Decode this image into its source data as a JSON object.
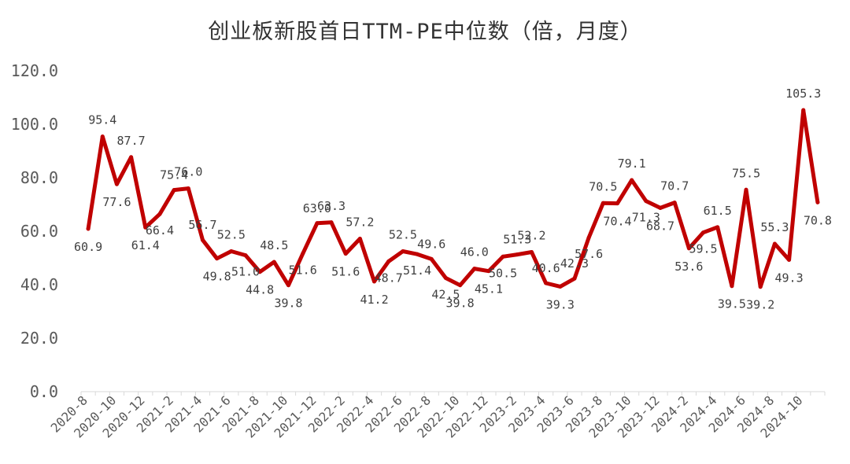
{
  "chart_data": {
    "type": "line",
    "title": "创业板新股首日TTM-PE中位数（倍，月度）",
    "xlabel": "",
    "ylabel": "",
    "ylim": [
      0,
      120
    ],
    "yticks": [
      "0.0",
      "20.0",
      "40.0",
      "60.0",
      "80.0",
      "100.0",
      "120.0"
    ],
    "grid": false,
    "legend": "none",
    "line_color": "#C00000",
    "categories": [
      "2020-8",
      "2020-9",
      "2020-10",
      "2020-11",
      "2020-12",
      "2021-1",
      "2021-2",
      "2021-3",
      "2021-4",
      "2021-5",
      "2021-6",
      "2021-7",
      "2021-8",
      "2021-9",
      "2021-10",
      "2021-11",
      "2021-12",
      "2022-1",
      "2022-2",
      "2022-3",
      "2022-4",
      "2022-5",
      "2022-6",
      "2022-7",
      "2022-8",
      "2022-9",
      "2022-10",
      "2022-11",
      "2022-12",
      "2023-1",
      "2023-2",
      "2023-3",
      "2023-4",
      "2023-5",
      "2023-6",
      "2023-7",
      "2023-8",
      "2023-9",
      "2023-10",
      "2023-11",
      "2023-12",
      "2024-1",
      "2024-2",
      "2024-3",
      "2024-4",
      "2024-5",
      "2024-6",
      "2024-7",
      "2024-8",
      "2024-9",
      "2024-10",
      "2024-11"
    ],
    "x_tick_labels": [
      "2020-8",
      "2020-10",
      "2020-12",
      "2021-2",
      "2021-4",
      "2021-6",
      "2021-8",
      "2021-10",
      "2021-12",
      "2022-2",
      "2022-4",
      "2022-6",
      "2022-8",
      "2022-10",
      "2022-12",
      "2023-2",
      "2023-4",
      "2023-6",
      "2023-8",
      "2023-10",
      "2023-12",
      "2024-2",
      "2024-4",
      "2024-6",
      "2024-8",
      "2024-10"
    ],
    "values": [
      60.9,
      95.4,
      77.6,
      87.7,
      61.4,
      66.4,
      75.4,
      76.0,
      56.7,
      49.8,
      52.5,
      51.0,
      44.8,
      48.5,
      39.8,
      51.6,
      63.0,
      63.3,
      51.6,
      57.2,
      41.2,
      48.7,
      52.5,
      51.4,
      49.6,
      42.5,
      39.8,
      46.0,
      45.1,
      50.5,
      51.3,
      52.2,
      40.6,
      39.3,
      42.3,
      57.6,
      70.5,
      70.4,
      79.1,
      71.3,
      68.7,
      70.7,
      53.6,
      59.5,
      61.5,
      39.5,
      75.5,
      39.2,
      55.3,
      49.3,
      105.3,
      70.8
    ],
    "data_labels": [
      {
        "i": 0,
        "text": "60.9"
      },
      {
        "i": 1,
        "text": "95.4"
      },
      {
        "i": 2,
        "text": "77.6"
      },
      {
        "i": 3,
        "text": "87.7"
      },
      {
        "i": 4,
        "text": "61.4"
      },
      {
        "i": 5,
        "text": "66.4"
      },
      {
        "i": 6,
        "text": "75.4"
      },
      {
        "i": 7,
        "text": "76.0"
      },
      {
        "i": 8,
        "text": "56.7"
      },
      {
        "i": 9,
        "text": "49.8"
      },
      {
        "i": 10,
        "text": "52.5"
      },
      {
        "i": 11,
        "text": "51.0"
      },
      {
        "i": 12,
        "text": "44.8"
      },
      {
        "i": 13,
        "text": "48.5"
      },
      {
        "i": 14,
        "text": "39.8"
      },
      {
        "i": 15,
        "text": "51.6"
      },
      {
        "i": 16,
        "text": "63.0"
      },
      {
        "i": 17,
        "text": "63.3"
      },
      {
        "i": 18,
        "text": "51.6"
      },
      {
        "i": 19,
        "text": "57.2"
      },
      {
        "i": 20,
        "text": "41.2"
      },
      {
        "i": 21,
        "text": "48.7"
      },
      {
        "i": 22,
        "text": "52.5"
      },
      {
        "i": 23,
        "text": "51.4"
      },
      {
        "i": 24,
        "text": "49.6"
      },
      {
        "i": 25,
        "text": "42.5"
      },
      {
        "i": 26,
        "text": "39.8"
      },
      {
        "i": 27,
        "text": "46.0"
      },
      {
        "i": 28,
        "text": "45.1"
      },
      {
        "i": 29,
        "text": "50.5"
      },
      {
        "i": 30,
        "text": "51.3"
      },
      {
        "i": 31,
        "text": "52.2"
      },
      {
        "i": 32,
        "text": "40.6"
      },
      {
        "i": 33,
        "text": "39.3"
      },
      {
        "i": 34,
        "text": "42.3"
      },
      {
        "i": 35,
        "text": "57.6"
      },
      {
        "i": 36,
        "text": "70.5"
      },
      {
        "i": 37,
        "text": "70.4"
      },
      {
        "i": 38,
        "text": "79.1"
      },
      {
        "i": 39,
        "text": "71.3"
      },
      {
        "i": 40,
        "text": "68.7"
      },
      {
        "i": 41,
        "text": "70.7"
      },
      {
        "i": 42,
        "text": "53.6"
      },
      {
        "i": 43,
        "text": "59.5"
      },
      {
        "i": 44,
        "text": "61.5"
      },
      {
        "i": 45,
        "text": "39.5"
      },
      {
        "i": 46,
        "text": "75.5"
      },
      {
        "i": 47,
        "text": "39.2"
      },
      {
        "i": 48,
        "text": "55.3"
      },
      {
        "i": 49,
        "text": "49.3"
      },
      {
        "i": 50,
        "text": "105.3"
      },
      {
        "i": 51,
        "text": "70.8"
      }
    ]
  }
}
